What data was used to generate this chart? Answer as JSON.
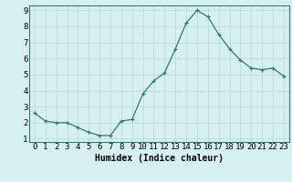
{
  "x": [
    0,
    1,
    2,
    3,
    4,
    5,
    6,
    7,
    8,
    9,
    10,
    11,
    12,
    13,
    14,
    15,
    16,
    17,
    18,
    19,
    20,
    21,
    22,
    23
  ],
  "y": [
    2.6,
    2.1,
    2.0,
    2.0,
    1.7,
    1.4,
    1.2,
    1.2,
    2.1,
    2.2,
    3.8,
    4.6,
    5.1,
    6.6,
    8.2,
    9.0,
    8.6,
    7.5,
    6.6,
    5.9,
    5.4,
    5.3,
    5.4,
    4.9
  ],
  "xlabel": "Humidex (Indice chaleur)",
  "xlim": [
    -0.5,
    23.5
  ],
  "ylim": [
    0.8,
    9.3
  ],
  "yticks": [
    1,
    2,
    3,
    4,
    5,
    6,
    7,
    8,
    9
  ],
  "xticks": [
    0,
    1,
    2,
    3,
    4,
    5,
    6,
    7,
    8,
    9,
    10,
    11,
    12,
    13,
    14,
    15,
    16,
    17,
    18,
    19,
    20,
    21,
    22,
    23
  ],
  "line_color": "#2e7d6e",
  "marker": "+",
  "bg_color": "#d6f0ef",
  "grid_color": "#b5d9d6",
  "label_fontsize": 7,
  "tick_fontsize": 6.5
}
